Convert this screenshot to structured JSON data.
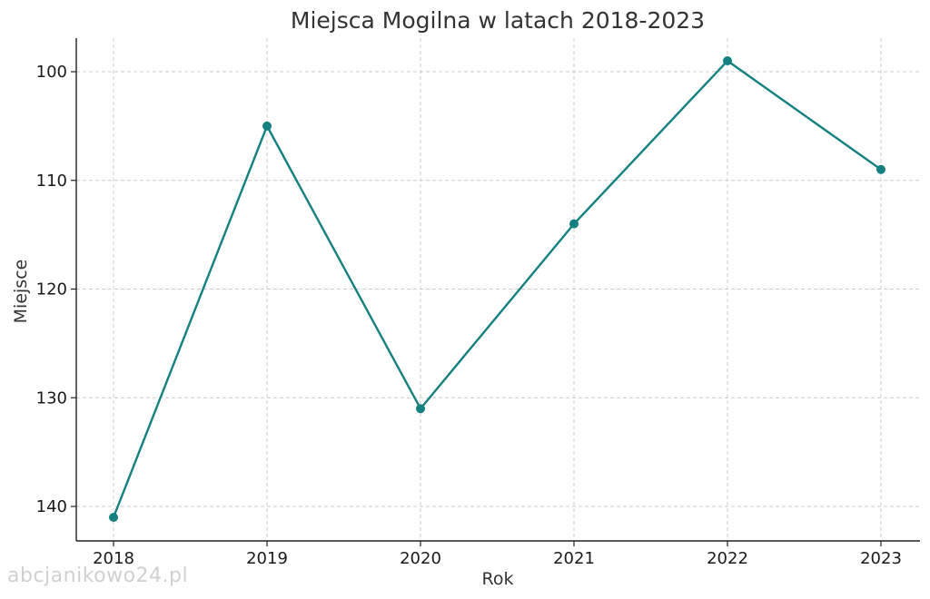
{
  "watermark": "abcjanikowo24.pl",
  "chart_data": {
    "type": "line",
    "title": "Miejsca Mogilna w latach 2018-2023",
    "xlabel": "Rok",
    "ylabel": "Miejsce",
    "x": [
      2018,
      2019,
      2020,
      2021,
      2022,
      2023
    ],
    "series": [
      {
        "values": [
          141,
          105,
          131,
          114,
          99,
          109
        ]
      }
    ],
    "y_ticks": [
      100,
      110,
      120,
      130,
      140
    ],
    "ylim": [
      143,
      97
    ],
    "y_inverted": true,
    "grid": true,
    "colors": {
      "line": "#148080",
      "grid": "#cccccc",
      "axis": "#222222"
    }
  }
}
